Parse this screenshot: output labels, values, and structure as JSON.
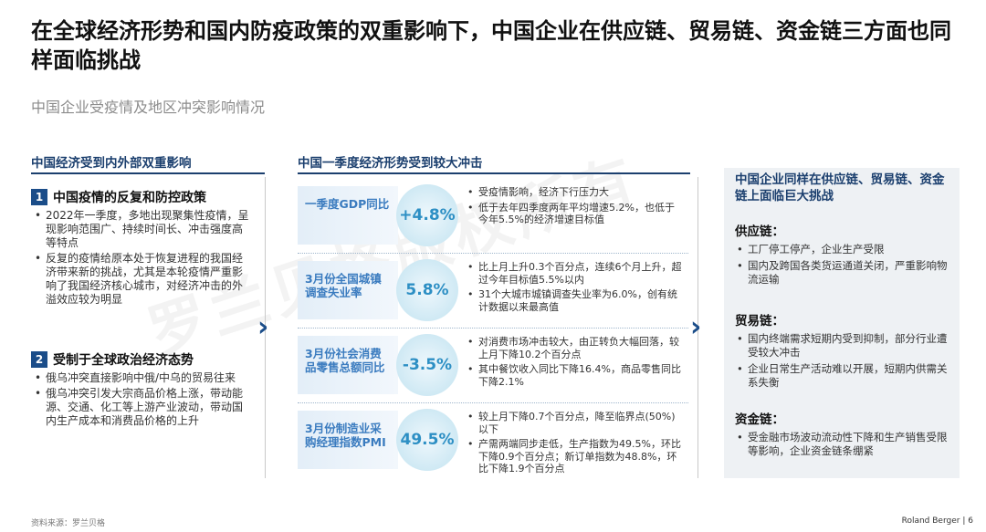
{
  "title": "在全球经济形势和国内防疫政策的双重影响下，中国企业在供应链、贸易链、资金链三方面也同样面临挑战",
  "subtitle": "中国企业受疫情及地区冲突影响情况",
  "left": {
    "heading": "中国经济受到内外部双重影响",
    "sections": [
      {
        "number": "1",
        "title": "中国疫情的反复和防控政策",
        "bullets": [
          "2022年一季度，多地出现聚集性疫情，呈现影响范围广、持续时间长、冲击强度高等特点",
          "反复的疫情给原本处于恢复进程的我国经济带来新的挑战，尤其是本轮疫情严重影响了我国经济核心城市，对经济冲击的外溢效应较为明显"
        ]
      },
      {
        "number": "2",
        "title": "受制于全球政治经济态势",
        "bullets": [
          "俄乌冲突直接影响中俄/中乌的贸易往来",
          "俄乌冲突引发大宗商品价格上涨，带动能源、交通、化工等上游产业波动，带动国内生产成本和消费品价格的上升"
        ]
      }
    ]
  },
  "middle": {
    "heading": "中国一季度经济形势受到较大冲击",
    "rows": [
      {
        "label": "一季度GDP同比",
        "value": "+4.8%",
        "bullets": [
          "受疫情影响，经济下行压力大",
          "低于去年四季度两年平均增速5.2%，也低于今年5.5%的经济增速目标值"
        ]
      },
      {
        "label": "3月份全国城镇调查失业率",
        "value": "5.8%",
        "bullets": [
          "比上月上升0.3个百分点，连续6个月上升，超过今年目标值5.5%以内",
          "31个大城市城镇调查失业率为6.0%，创有统计数据以来最高值"
        ]
      },
      {
        "label": "3月份社会消费品零售总额同比",
        "value": "-3.5%",
        "bullets": [
          "对消费市场冲击较大，由正转负大幅回落，较上月下降10.2个百分点",
          "其中餐饮收入同比下降16.4%，商品零售同比下降2.1%"
        ]
      },
      {
        "label": "3月份制造业采购经理指数PMI",
        "value": "49.5%",
        "bullets": [
          "较上月下降0.7个百分点，降至临界点(50%)以下",
          "产需两端同步走低，生产指数为49.5%，环比下降0.9个百分点；新订单指数为48.8%，环比下降1.9个百分点"
        ]
      }
    ]
  },
  "right": {
    "heading": "中国企业同样在供应链、贸易链、资金链上面临巨大挑战",
    "sections": [
      {
        "title": "供应链：",
        "bullets": [
          "工厂停工停产，企业生产受限",
          "国内及跨国各类货运通道关闭，严重影响物流运输"
        ]
      },
      {
        "title": "贸易链：",
        "bullets": [
          "国内终端需求短期内受到抑制，部分行业遭受较大冲击",
          "企业日常生产活动难以开展，短期内供需关系失衡"
        ]
      },
      {
        "title": "资金链：",
        "bullets": [
          "受金融市场波动流动性下降和生产销售受限等影响，企业资金链条绷紧"
        ]
      }
    ]
  },
  "watermark": "罗兰贝格版权所有",
  "footer": {
    "source": "资料来源：罗兰贝格",
    "brand": "Roland Berger",
    "separator": "|",
    "page": "6"
  }
}
